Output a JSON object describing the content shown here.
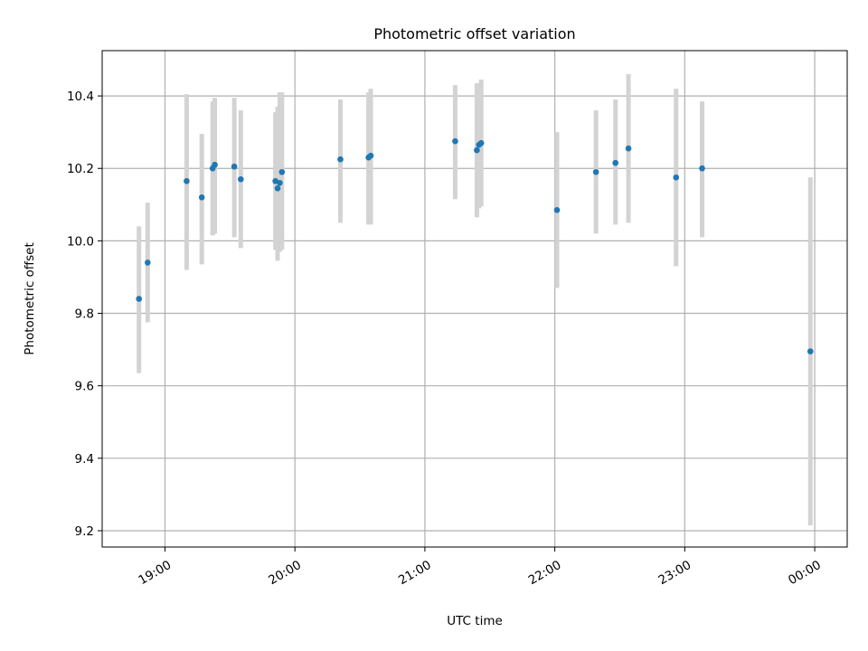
{
  "chart_data": {
    "type": "scatter",
    "title": "Photometric offset variation",
    "xlabel": "UTC time",
    "ylabel": "Photometric offset",
    "xlim": [
      "18:31",
      "00:15"
    ],
    "ylim": [
      9.155,
      10.525
    ],
    "x_ticks": [
      "19:00",
      "20:00",
      "21:00",
      "22:00",
      "23:00",
      "00:00"
    ],
    "y_ticks": [
      "9.2",
      "9.4",
      "9.6",
      "9.8",
      "10.0",
      "10.2",
      "10.4"
    ],
    "grid": true,
    "colors": {
      "points": "#1f77b4",
      "error_bars": "#d3d3d3",
      "grid": "#b0b0b0"
    },
    "series": [
      {
        "points": [
          {
            "x": "18:48",
            "y": 9.84,
            "lo": 9.635,
            "hi": 10.04
          },
          {
            "x": "18:52",
            "y": 9.94,
            "lo": 9.775,
            "hi": 10.105
          },
          {
            "x": "19:10",
            "y": 10.165,
            "lo": 9.92,
            "hi": 10.405
          },
          {
            "x": "19:17",
            "y": 10.12,
            "lo": 9.935,
            "hi": 10.295
          },
          {
            "x": "19:22",
            "y": 10.2,
            "lo": 10.015,
            "hi": 10.385
          },
          {
            "x": "19:23",
            "y": 10.21,
            "lo": 10.02,
            "hi": 10.395
          },
          {
            "x": "19:32",
            "y": 10.205,
            "lo": 10.01,
            "hi": 10.395
          },
          {
            "x": "19:35",
            "y": 10.17,
            "lo": 9.98,
            "hi": 10.36
          },
          {
            "x": "19:51",
            "y": 10.165,
            "lo": 9.975,
            "hi": 10.355
          },
          {
            "x": "19:52",
            "y": 10.145,
            "lo": 9.945,
            "hi": 10.37
          },
          {
            "x": "19:53",
            "y": 10.16,
            "lo": 9.97,
            "hi": 10.41
          },
          {
            "x": "19:54",
            "y": 10.19,
            "lo": 9.975,
            "hi": 10.41
          },
          {
            "x": "20:21",
            "y": 10.225,
            "lo": 10.05,
            "hi": 10.39
          },
          {
            "x": "20:34",
            "y": 10.23,
            "lo": 10.045,
            "hi": 10.41
          },
          {
            "x": "20:35",
            "y": 10.235,
            "lo": 10.045,
            "hi": 10.42
          },
          {
            "x": "21:14",
            "y": 10.275,
            "lo": 10.115,
            "hi": 10.43
          },
          {
            "x": "21:24",
            "y": 10.25,
            "lo": 10.065,
            "hi": 10.435
          },
          {
            "x": "21:25",
            "y": 10.265,
            "lo": 10.09,
            "hi": 10.435
          },
          {
            "x": "21:26",
            "y": 10.27,
            "lo": 10.095,
            "hi": 10.445
          },
          {
            "x": "22:01",
            "y": 10.085,
            "lo": 9.87,
            "hi": 10.3
          },
          {
            "x": "22:19",
            "y": 10.19,
            "lo": 10.02,
            "hi": 10.36
          },
          {
            "x": "22:28",
            "y": 10.215,
            "lo": 10.045,
            "hi": 10.39
          },
          {
            "x": "22:34",
            "y": 10.255,
            "lo": 10.05,
            "hi": 10.46
          },
          {
            "x": "22:56",
            "y": 10.175,
            "lo": 9.93,
            "hi": 10.42
          },
          {
            "x": "23:08",
            "y": 10.2,
            "lo": 10.01,
            "hi": 10.385
          },
          {
            "x": "23:58",
            "y": 9.695,
            "lo": 9.215,
            "hi": 10.175
          }
        ]
      }
    ]
  }
}
